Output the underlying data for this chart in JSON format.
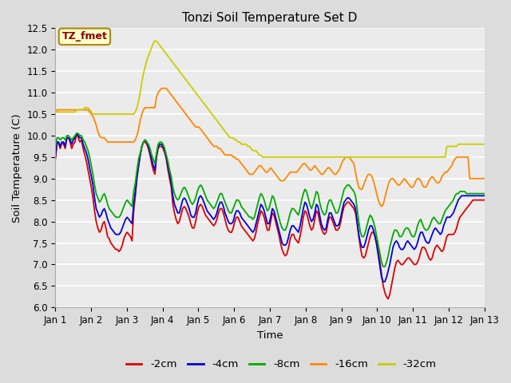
{
  "title": "Tonzi Soil Temperature Set D",
  "xlabel": "Time",
  "ylabel": "Soil Temperature (C)",
  "annotation": "TZ_fmet",
  "ylim": [
    6.0,
    12.5
  ],
  "xlim": [
    0,
    12
  ],
  "xtick_labels": [
    "Jan 1",
    "Jan 2",
    "Jan 3",
    "Jan 4",
    "Jan 5",
    "Jan 6",
    "Jan 7",
    "Jan 8",
    "Jan 9",
    "Jan 10",
    "Jan 11",
    "Jan 12",
    "Jan 13"
  ],
  "ytick_values": [
    6.0,
    6.5,
    7.0,
    7.5,
    8.0,
    8.5,
    9.0,
    9.5,
    10.0,
    10.5,
    11.0,
    11.5,
    12.0,
    12.5
  ],
  "line_colors": {
    "-2cm": "#dd0000",
    "-4cm": "#0000dd",
    "-8cm": "#00aa00",
    "-16cm": "#ff8800",
    "-32cm": "#cccc00"
  },
  "line_width": 1.3,
  "n_days": 12,
  "pts_per_day": 24,
  "series": {
    "-2cm": [
      9.45,
      9.85,
      9.8,
      9.7,
      9.85,
      9.8,
      9.7,
      9.95,
      9.95,
      9.85,
      9.7,
      9.8,
      9.85,
      10.05,
      9.95,
      9.85,
      9.9,
      9.7,
      9.55,
      9.4,
      9.2,
      9.0,
      8.8,
      8.55,
      8.25,
      8.0,
      7.85,
      7.75,
      7.8,
      7.95,
      8.0,
      7.85,
      7.65,
      7.6,
      7.5,
      7.45,
      7.4,
      7.35,
      7.35,
      7.3,
      7.35,
      7.45,
      7.6,
      7.7,
      7.75,
      7.7,
      7.65,
      7.55,
      8.25,
      8.6,
      9.0,
      9.3,
      9.55,
      9.75,
      9.85,
      9.85,
      9.8,
      9.7,
      9.55,
      9.35,
      9.2,
      9.1,
      9.5,
      9.7,
      9.75,
      9.75,
      9.7,
      9.6,
      9.45,
      9.2,
      9.0,
      8.8,
      8.4,
      8.2,
      8.05,
      7.95,
      8.0,
      8.15,
      8.3,
      8.35,
      8.3,
      8.2,
      8.1,
      7.95,
      7.85,
      7.85,
      8.0,
      8.2,
      8.35,
      8.4,
      8.35,
      8.25,
      8.15,
      8.1,
      8.05,
      8.0,
      7.95,
      7.9,
      7.95,
      8.05,
      8.2,
      8.3,
      8.3,
      8.2,
      8.05,
      7.9,
      7.8,
      7.75,
      7.75,
      7.85,
      8.0,
      8.1,
      8.1,
      8.0,
      7.9,
      7.85,
      7.8,
      7.75,
      7.7,
      7.65,
      7.6,
      7.55,
      7.6,
      7.75,
      7.95,
      8.1,
      8.25,
      8.2,
      8.1,
      7.95,
      7.8,
      7.8,
      8.0,
      8.2,
      8.15,
      8.0,
      7.85,
      7.7,
      7.5,
      7.35,
      7.25,
      7.2,
      7.25,
      7.4,
      7.6,
      7.7,
      7.7,
      7.6,
      7.55,
      7.5,
      7.65,
      7.85,
      8.1,
      8.25,
      8.2,
      8.05,
      7.9,
      7.8,
      7.85,
      8.05,
      8.25,
      8.2,
      8.0,
      7.85,
      7.75,
      7.7,
      7.75,
      7.95,
      8.1,
      8.1,
      8.0,
      7.9,
      7.8,
      7.8,
      7.85,
      8.0,
      8.2,
      8.35,
      8.4,
      8.45,
      8.45,
      8.4,
      8.35,
      8.3,
      8.2,
      7.95,
      7.65,
      7.4,
      7.2,
      7.15,
      7.2,
      7.35,
      7.5,
      7.65,
      7.75,
      7.75,
      7.65,
      7.5,
      7.3,
      7.05,
      6.75,
      6.5,
      6.35,
      6.25,
      6.2,
      6.3,
      6.5,
      6.7,
      6.9,
      7.05,
      7.1,
      7.05,
      7.0,
      7.0,
      7.05,
      7.1,
      7.15,
      7.15,
      7.1,
      7.05,
      7.0,
      7.0,
      7.05,
      7.15,
      7.3,
      7.4,
      7.4,
      7.35,
      7.25,
      7.15,
      7.1,
      7.15,
      7.3,
      7.4,
      7.45,
      7.4,
      7.35,
      7.3,
      7.35,
      7.5,
      7.65,
      7.7,
      7.7,
      7.7,
      7.7,
      7.75,
      7.85,
      8.0,
      8.1,
      8.15,
      8.2,
      8.25,
      8.3,
      8.35,
      8.4,
      8.45,
      8.5,
      8.5,
      8.5,
      8.5,
      8.5,
      8.5,
      8.5,
      8.5
    ],
    "-4cm": [
      9.5,
      9.85,
      9.85,
      9.75,
      9.85,
      9.85,
      9.75,
      9.95,
      9.95,
      9.9,
      9.8,
      9.9,
      9.95,
      10.05,
      10.0,
      9.95,
      9.95,
      9.8,
      9.7,
      9.6,
      9.45,
      9.25,
      9.05,
      8.85,
      8.55,
      8.3,
      8.2,
      8.1,
      8.15,
      8.25,
      8.3,
      8.2,
      8.05,
      7.95,
      7.85,
      7.8,
      7.75,
      7.7,
      7.7,
      7.7,
      7.75,
      7.85,
      7.95,
      8.05,
      8.1,
      8.05,
      8.0,
      7.95,
      8.4,
      8.7,
      9.05,
      9.3,
      9.55,
      9.75,
      9.85,
      9.9,
      9.85,
      9.75,
      9.6,
      9.45,
      9.3,
      9.2,
      9.55,
      9.75,
      9.8,
      9.8,
      9.75,
      9.65,
      9.5,
      9.3,
      9.1,
      8.9,
      8.6,
      8.4,
      8.3,
      8.2,
      8.2,
      8.35,
      8.5,
      8.55,
      8.5,
      8.4,
      8.3,
      8.15,
      8.1,
      8.1,
      8.2,
      8.4,
      8.55,
      8.6,
      8.55,
      8.45,
      8.35,
      8.25,
      8.2,
      8.15,
      8.1,
      8.05,
      8.1,
      8.2,
      8.35,
      8.45,
      8.45,
      8.35,
      8.2,
      8.1,
      8.0,
      7.95,
      7.95,
      8.0,
      8.15,
      8.25,
      8.25,
      8.2,
      8.1,
      8.05,
      8.0,
      7.95,
      7.9,
      7.85,
      7.8,
      7.75,
      7.8,
      7.95,
      8.1,
      8.25,
      8.4,
      8.35,
      8.25,
      8.1,
      7.95,
      7.95,
      8.1,
      8.3,
      8.25,
      8.1,
      7.95,
      7.8,
      7.65,
      7.5,
      7.45,
      7.45,
      7.5,
      7.65,
      7.8,
      7.9,
      7.9,
      7.85,
      7.8,
      7.75,
      7.9,
      8.1,
      8.3,
      8.45,
      8.4,
      8.25,
      8.1,
      8.0,
      8.05,
      8.2,
      8.4,
      8.35,
      8.15,
      7.95,
      7.85,
      7.8,
      7.85,
      8.05,
      8.2,
      8.2,
      8.1,
      8.0,
      7.9,
      7.9,
      7.95,
      8.1,
      8.3,
      8.45,
      8.5,
      8.55,
      8.55,
      8.5,
      8.45,
      8.4,
      8.3,
      8.0,
      7.7,
      7.5,
      7.4,
      7.4,
      7.5,
      7.65,
      7.8,
      7.9,
      7.9,
      7.8,
      7.65,
      7.45,
      7.2,
      6.95,
      6.7,
      6.6,
      6.6,
      6.7,
      6.85,
      7.0,
      7.2,
      7.4,
      7.5,
      7.55,
      7.5,
      7.4,
      7.35,
      7.35,
      7.4,
      7.5,
      7.55,
      7.5,
      7.45,
      7.4,
      7.35,
      7.4,
      7.5,
      7.65,
      7.75,
      7.75,
      7.65,
      7.55,
      7.5,
      7.5,
      7.6,
      7.7,
      7.8,
      7.85,
      7.8,
      7.75,
      7.7,
      7.75,
      7.9,
      8.0,
      8.1,
      8.1,
      8.1,
      8.15,
      8.2,
      8.3,
      8.4,
      8.5,
      8.55,
      8.6,
      8.6,
      8.6,
      8.6,
      8.6,
      8.6,
      8.6,
      8.6,
      8.6,
      8.6,
      8.6,
      8.6,
      8.6,
      8.6,
      8.6
    ],
    "-8cm": [
      9.75,
      9.95,
      9.95,
      9.9,
      9.95,
      9.95,
      9.9,
      10.0,
      10.0,
      9.95,
      9.9,
      9.95,
      10.0,
      10.05,
      10.05,
      10.0,
      10.0,
      9.9,
      9.85,
      9.75,
      9.65,
      9.5,
      9.3,
      9.1,
      8.85,
      8.65,
      8.55,
      8.45,
      8.5,
      8.6,
      8.65,
      8.55,
      8.4,
      8.3,
      8.25,
      8.2,
      8.15,
      8.1,
      8.1,
      8.1,
      8.15,
      8.25,
      8.35,
      8.45,
      8.5,
      8.45,
      8.4,
      8.35,
      8.7,
      8.9,
      9.2,
      9.45,
      9.6,
      9.75,
      9.85,
      9.9,
      9.85,
      9.8,
      9.7,
      9.55,
      9.45,
      9.35,
      9.6,
      9.8,
      9.85,
      9.85,
      9.8,
      9.7,
      9.55,
      9.4,
      9.2,
      9.05,
      8.8,
      8.65,
      8.55,
      8.5,
      8.55,
      8.65,
      8.75,
      8.8,
      8.75,
      8.65,
      8.55,
      8.45,
      8.4,
      8.45,
      8.55,
      8.7,
      8.8,
      8.85,
      8.8,
      8.7,
      8.6,
      8.5,
      8.45,
      8.4,
      8.35,
      8.3,
      8.35,
      8.45,
      8.55,
      8.65,
      8.65,
      8.55,
      8.45,
      8.35,
      8.25,
      8.2,
      8.2,
      8.3,
      8.4,
      8.5,
      8.5,
      8.45,
      8.35,
      8.3,
      8.25,
      8.2,
      8.15,
      8.1,
      8.1,
      8.05,
      8.1,
      8.25,
      8.4,
      8.55,
      8.65,
      8.6,
      8.5,
      8.35,
      8.25,
      8.3,
      8.45,
      8.6,
      8.55,
      8.4,
      8.25,
      8.1,
      7.95,
      7.85,
      7.8,
      7.8,
      7.9,
      8.05,
      8.2,
      8.3,
      8.3,
      8.25,
      8.2,
      8.15,
      8.3,
      8.5,
      8.65,
      8.75,
      8.7,
      8.55,
      8.4,
      8.3,
      8.4,
      8.55,
      8.7,
      8.65,
      8.45,
      8.3,
      8.2,
      8.15,
      8.2,
      8.4,
      8.5,
      8.5,
      8.4,
      8.3,
      8.2,
      8.2,
      8.3,
      8.45,
      8.6,
      8.75,
      8.8,
      8.85,
      8.85,
      8.8,
      8.75,
      8.7,
      8.6,
      8.3,
      8.0,
      7.75,
      7.65,
      7.65,
      7.75,
      7.9,
      8.05,
      8.15,
      8.1,
      8.0,
      7.85,
      7.65,
      7.45,
      7.25,
      7.05,
      6.95,
      6.95,
      7.05,
      7.2,
      7.4,
      7.55,
      7.7,
      7.8,
      7.8,
      7.75,
      7.65,
      7.65,
      7.7,
      7.8,
      7.85,
      7.85,
      7.8,
      7.7,
      7.65,
      7.65,
      7.75,
      7.9,
      8.0,
      8.05,
      7.95,
      7.85,
      7.8,
      7.8,
      7.85,
      7.95,
      8.05,
      8.1,
      8.05,
      8.0,
      7.95,
      7.95,
      8.05,
      8.15,
      8.25,
      8.3,
      8.35,
      8.4,
      8.45,
      8.5,
      8.6,
      8.65,
      8.65,
      8.7,
      8.7,
      8.7,
      8.7,
      8.65,
      8.65,
      8.65,
      8.65,
      8.65,
      8.65,
      8.65,
      8.65,
      8.65,
      8.65,
      8.65,
      8.65
    ],
    "-16cm": [
      10.55,
      10.6,
      10.6,
      10.6,
      10.6,
      10.6,
      10.6,
      10.6,
      10.6,
      10.6,
      10.6,
      10.6,
      10.6,
      10.6,
      10.6,
      10.6,
      10.6,
      10.6,
      10.6,
      10.6,
      10.6,
      10.55,
      10.5,
      10.45,
      10.35,
      10.25,
      10.1,
      10.0,
      9.95,
      9.95,
      9.95,
      9.9,
      9.85,
      9.85,
      9.85,
      9.85,
      9.85,
      9.85,
      9.85,
      9.85,
      9.85,
      9.85,
      9.85,
      9.85,
      9.85,
      9.85,
      9.85,
      9.85,
      9.85,
      9.9,
      10.0,
      10.15,
      10.35,
      10.5,
      10.6,
      10.65,
      10.65,
      10.65,
      10.65,
      10.65,
      10.65,
      10.65,
      10.9,
      11.0,
      11.05,
      11.1,
      11.1,
      11.1,
      11.1,
      11.05,
      11.0,
      10.95,
      10.9,
      10.85,
      10.8,
      10.75,
      10.7,
      10.65,
      10.6,
      10.55,
      10.5,
      10.45,
      10.4,
      10.35,
      10.3,
      10.25,
      10.2,
      10.2,
      10.2,
      10.15,
      10.1,
      10.05,
      10.0,
      9.95,
      9.9,
      9.85,
      9.8,
      9.75,
      9.75,
      9.75,
      9.7,
      9.7,
      9.65,
      9.6,
      9.55,
      9.55,
      9.55,
      9.55,
      9.55,
      9.5,
      9.5,
      9.45,
      9.45,
      9.4,
      9.35,
      9.3,
      9.25,
      9.2,
      9.15,
      9.1,
      9.1,
      9.1,
      9.15,
      9.2,
      9.25,
      9.3,
      9.3,
      9.25,
      9.2,
      9.15,
      9.15,
      9.2,
      9.25,
      9.2,
      9.15,
      9.1,
      9.05,
      9.0,
      8.95,
      8.95,
      8.95,
      9.0,
      9.05,
      9.1,
      9.15,
      9.15,
      9.15,
      9.15,
      9.15,
      9.2,
      9.25,
      9.3,
      9.35,
      9.35,
      9.3,
      9.25,
      9.2,
      9.2,
      9.25,
      9.3,
      9.25,
      9.2,
      9.15,
      9.1,
      9.1,
      9.15,
      9.2,
      9.25,
      9.25,
      9.2,
      9.15,
      9.1,
      9.1,
      9.15,
      9.2,
      9.3,
      9.4,
      9.45,
      9.5,
      9.5,
      9.5,
      9.45,
      9.4,
      9.35,
      9.15,
      8.95,
      8.8,
      8.75,
      8.75,
      8.85,
      8.95,
      9.05,
      9.1,
      9.1,
      9.05,
      8.95,
      8.8,
      8.65,
      8.5,
      8.4,
      8.35,
      8.4,
      8.55,
      8.7,
      8.85,
      8.95,
      9.0,
      9.0,
      8.95,
      8.9,
      8.85,
      8.85,
      8.9,
      8.95,
      9.0,
      8.95,
      8.9,
      8.85,
      8.8,
      8.8,
      8.85,
      8.95,
      9.0,
      9.0,
      8.95,
      8.85,
      8.8,
      8.8,
      8.85,
      8.95,
      9.0,
      9.05,
      9.0,
      8.95,
      8.9,
      8.9,
      8.95,
      9.05,
      9.1,
      9.15,
      9.15,
      9.2,
      9.25,
      9.3,
      9.4,
      9.45,
      9.5,
      9.5,
      9.5,
      9.5,
      9.5,
      9.5,
      9.5,
      9.5,
      9.0,
      9.0,
      9.0,
      9.0,
      9.0,
      9.0,
      9.0,
      9.0,
      9.0,
      9.0
    ],
    "-32cm": [
      10.55,
      10.55,
      10.55,
      10.55,
      10.55,
      10.55,
      10.55,
      10.55,
      10.55,
      10.55,
      10.55,
      10.55,
      10.55,
      10.6,
      10.6,
      10.6,
      10.6,
      10.6,
      10.65,
      10.65,
      10.65,
      10.6,
      10.55,
      10.5,
      10.5,
      10.5,
      10.5,
      10.5,
      10.5,
      10.5,
      10.5,
      10.5,
      10.5,
      10.5,
      10.5,
      10.5,
      10.5,
      10.5,
      10.5,
      10.5,
      10.5,
      10.5,
      10.5,
      10.5,
      10.5,
      10.5,
      10.5,
      10.5,
      10.5,
      10.55,
      10.65,
      10.8,
      11.0,
      11.25,
      11.45,
      11.6,
      11.75,
      11.85,
      11.95,
      12.05,
      12.15,
      12.2,
      12.2,
      12.15,
      12.1,
      12.05,
      12.0,
      11.95,
      11.9,
      11.85,
      11.8,
      11.75,
      11.7,
      11.65,
      11.6,
      11.55,
      11.5,
      11.45,
      11.4,
      11.35,
      11.3,
      11.25,
      11.2,
      11.15,
      11.1,
      11.05,
      11.0,
      10.95,
      10.9,
      10.85,
      10.8,
      10.75,
      10.7,
      10.65,
      10.6,
      10.55,
      10.5,
      10.45,
      10.4,
      10.35,
      10.3,
      10.25,
      10.2,
      10.15,
      10.1,
      10.05,
      10.0,
      9.95,
      9.95,
      9.95,
      9.9,
      9.9,
      9.85,
      9.85,
      9.8,
      9.8,
      9.8,
      9.8,
      9.75,
      9.75,
      9.7,
      9.65,
      9.65,
      9.65,
      9.6,
      9.55,
      9.55,
      9.5,
      9.5,
      9.5,
      9.5,
      9.5,
      9.5,
      9.5,
      9.5,
      9.5,
      9.5,
      9.5,
      9.5,
      9.5,
      9.5,
      9.5,
      9.5,
      9.5,
      9.5,
      9.5,
      9.5,
      9.5,
      9.5,
      9.5,
      9.5,
      9.5,
      9.5,
      9.5,
      9.5,
      9.5,
      9.5,
      9.5,
      9.5,
      9.5,
      9.5,
      9.5,
      9.5,
      9.5,
      9.5,
      9.5,
      9.5,
      9.5,
      9.5,
      9.5,
      9.5,
      9.5,
      9.5,
      9.5,
      9.5,
      9.5,
      9.5,
      9.5,
      9.5,
      9.5,
      9.5,
      9.5,
      9.5,
      9.5,
      9.5,
      9.5,
      9.5,
      9.5,
      9.5,
      9.5,
      9.5,
      9.5,
      9.5,
      9.5,
      9.5,
      9.5,
      9.5,
      9.5,
      9.5,
      9.5,
      9.5,
      9.5,
      9.5,
      9.5,
      9.5,
      9.5,
      9.5,
      9.5,
      9.5,
      9.5,
      9.5,
      9.5,
      9.5,
      9.5,
      9.5,
      9.5,
      9.5,
      9.5,
      9.5,
      9.5,
      9.5,
      9.5,
      9.5,
      9.5,
      9.5,
      9.5,
      9.5,
      9.5,
      9.5,
      9.5,
      9.5,
      9.5,
      9.5,
      9.5,
      9.5,
      9.5,
      9.5,
      9.5,
      9.5,
      9.5,
      9.75,
      9.75,
      9.75,
      9.75,
      9.75,
      9.75,
      9.75,
      9.8,
      9.8,
      9.8,
      9.8,
      9.8,
      9.8,
      9.8,
      9.8,
      9.8,
      9.8,
      9.8,
      9.8,
      9.8,
      9.8,
      9.8,
      9.8,
      9.8
    ]
  }
}
